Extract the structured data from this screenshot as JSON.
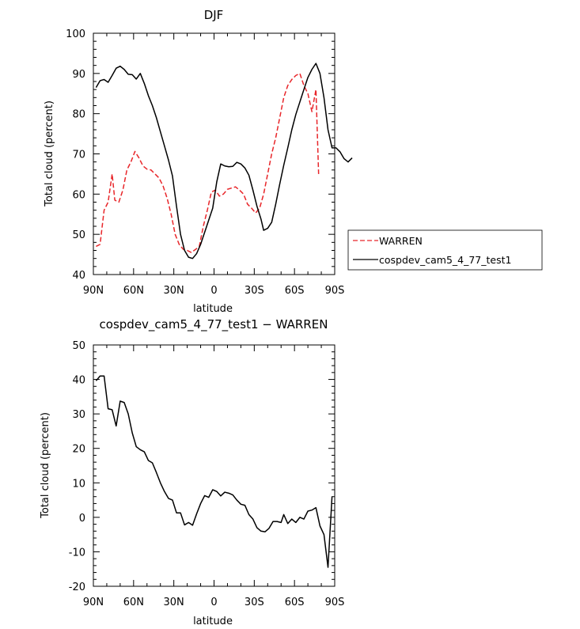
{
  "chart_data": [
    {
      "type": "line",
      "title": "DJF",
      "xlabel": "latitude",
      "ylabel": "Total cloud (percent)",
      "xlim": [
        90,
        -90
      ],
      "ylim": [
        40,
        100
      ],
      "x_ticks": [
        {
          "v": 90,
          "label": "90N"
        },
        {
          "v": 60,
          "label": "60N"
        },
        {
          "v": 30,
          "label": "30N"
        },
        {
          "v": 0,
          "label": "0"
        },
        {
          "v": -30,
          "label": "30S"
        },
        {
          "v": -60,
          "label": "60S"
        },
        {
          "v": -90,
          "label": "90S"
        }
      ],
      "y_ticks": [
        40,
        50,
        60,
        70,
        80,
        90,
        100
      ],
      "legend": "right",
      "series": [
        {
          "name": "WARREN",
          "color": "#e8262a",
          "dash": "dashed",
          "points": [
            [
              88,
              47
            ],
            [
              85,
              47.5
            ],
            [
              82,
              56
            ],
            [
              79,
              58
            ],
            [
              76,
              65
            ],
            [
              74,
              58.5
            ],
            [
              71,
              58
            ],
            [
              68,
              61
            ],
            [
              65,
              66
            ],
            [
              62,
              68
            ],
            [
              59,
              70.6
            ],
            [
              56,
              69
            ],
            [
              53,
              67
            ],
            [
              50,
              66.2
            ],
            [
              47,
              66
            ],
            [
              44,
              65
            ],
            [
              41,
              64
            ],
            [
              38,
              62
            ],
            [
              35,
              59
            ],
            [
              32,
              55
            ],
            [
              29,
              50
            ],
            [
              26,
              47.5
            ],
            [
              23,
              46.3
            ],
            [
              20,
              46
            ],
            [
              17,
              45.5
            ],
            [
              14,
              46.2
            ],
            [
              11,
              47
            ],
            [
              8,
              52
            ],
            [
              5,
              56
            ],
            [
              2,
              60.5
            ],
            [
              -1,
              61
            ],
            [
              -4,
              59.5
            ],
            [
              -7,
              60
            ],
            [
              -10,
              61.2
            ],
            [
              -13,
              61.5
            ],
            [
              -16,
              61.8
            ],
            [
              -19,
              61
            ],
            [
              -22,
              60
            ],
            [
              -25,
              57.5
            ],
            [
              -28,
              56.5
            ],
            [
              -31,
              55.3
            ],
            [
              -34,
              56.5
            ],
            [
              -37,
              60
            ],
            [
              -40,
              65
            ],
            [
              -43,
              70
            ],
            [
              -46,
              74
            ],
            [
              -49,
              79
            ],
            [
              -52,
              84
            ],
            [
              -55,
              87
            ],
            [
              -58,
              88.5
            ],
            [
              -61,
              89.5
            ],
            [
              -64,
              90
            ],
            [
              -67,
              87
            ],
            [
              -70,
              85
            ],
            [
              -73,
              80.5
            ],
            [
              -76,
              86
            ],
            [
              -78,
              65
            ]
          ]
        },
        {
          "name": "cospdev_cam5_4_77_test1",
          "color": "#000000",
          "dash": "solid",
          "points": [
            [
              88,
              86.5
            ],
            [
              85,
              88.2
            ],
            [
              82,
              88.5
            ],
            [
              79,
              87.8
            ],
            [
              76,
              89.5
            ],
            [
              73,
              91.3
            ],
            [
              70,
              91.8
            ],
            [
              67,
              91
            ],
            [
              64,
              89.8
            ],
            [
              61,
              89.7
            ],
            [
              58,
              88.6
            ],
            [
              55,
              90
            ],
            [
              52,
              87.5
            ],
            [
              49,
              84.5
            ],
            [
              46,
              82
            ],
            [
              43,
              79
            ],
            [
              40,
              75.5
            ],
            [
              37,
              72
            ],
            [
              34,
              68.5
            ],
            [
              31,
              64.5
            ],
            [
              28,
              57
            ],
            [
              25,
              50
            ],
            [
              22,
              46
            ],
            [
              19,
              44.3
            ],
            [
              16,
              44
            ],
            [
              13,
              45.2
            ],
            [
              10,
              47.5
            ],
            [
              7,
              50.5
            ],
            [
              4,
              53.5
            ],
            [
              1,
              56.5
            ],
            [
              -2,
              63
            ],
            [
              -5,
              67.5
            ],
            [
              -8,
              67
            ],
            [
              -11,
              66.8
            ],
            [
              -14,
              66.9
            ],
            [
              -17,
              67.9
            ],
            [
              -20,
              67.5
            ],
            [
              -23,
              66.5
            ],
            [
              -26,
              64.7
            ],
            [
              -29,
              61
            ],
            [
              -32,
              57
            ],
            [
              -35,
              53.8
            ],
            [
              -37,
              51
            ],
            [
              -40,
              51.5
            ],
            [
              -43,
              53
            ],
            [
              -46,
              57.5
            ],
            [
              -49,
              62.5
            ],
            [
              -52,
              67.2
            ],
            [
              -55,
              71.5
            ],
            [
              -58,
              76
            ],
            [
              -61,
              79.8
            ],
            [
              -64,
              82.9
            ],
            [
              -67,
              86
            ],
            [
              -70,
              89
            ],
            [
              -73,
              91
            ],
            [
              -76,
              92.5
            ],
            [
              -79,
              90
            ],
            [
              -82,
              84
            ],
            [
              -85,
              76
            ],
            [
              -88,
              71.5
            ],
            [
              -91,
              71.5
            ],
            [
              -94,
              70.5
            ],
            [
              -97,
              68.8
            ],
            [
              -100,
              68
            ],
            [
              -103,
              69
            ]
          ]
        }
      ]
    },
    {
      "type": "line",
      "title": "cospdev_cam5_4_77_test1 − WARREN",
      "xlabel": "latitude",
      "ylabel": "Total cloud (percent)",
      "xlim": [
        90,
        -90
      ],
      "ylim": [
        -20,
        50
      ],
      "x_ticks": [
        {
          "v": 90,
          "label": "90N"
        },
        {
          "v": 60,
          "label": "60N"
        },
        {
          "v": 30,
          "label": "30N"
        },
        {
          "v": 0,
          "label": "0"
        },
        {
          "v": -30,
          "label": "30S"
        },
        {
          "v": -60,
          "label": "60S"
        },
        {
          "v": -90,
          "label": "90S"
        }
      ],
      "y_ticks": [
        -20,
        -10,
        0,
        10,
        20,
        30,
        40,
        50
      ],
      "series": [
        {
          "color": "#000000",
          "dash": "solid",
          "points": [
            [
              88,
              39.6
            ],
            [
              85,
              41
            ],
            [
              82,
              41
            ],
            [
              79,
              31.5
            ],
            [
              76,
              31.2
            ],
            [
              73,
              26.5
            ],
            [
              70,
              33.7
            ],
            [
              67,
              33.3
            ],
            [
              64,
              30
            ],
            [
              61,
              24.5
            ],
            [
              58,
              20.5
            ],
            [
              55,
              19.6
            ],
            [
              52,
              19
            ],
            [
              49,
              16.5
            ],
            [
              46,
              15.8
            ],
            [
              43,
              13
            ],
            [
              40,
              10
            ],
            [
              37,
              7.5
            ],
            [
              34,
              5.5
            ],
            [
              31,
              5
            ],
            [
              28,
              1.3
            ],
            [
              25,
              1.3
            ],
            [
              22,
              -2.2
            ],
            [
              19,
              -1.5
            ],
            [
              16,
              -2.3
            ],
            [
              13,
              1
            ],
            [
              10,
              4
            ],
            [
              7,
              6.3
            ],
            [
              4,
              5.8
            ],
            [
              1,
              8
            ],
            [
              -2,
              7.5
            ],
            [
              -5,
              6.2
            ],
            [
              -8,
              7.3
            ],
            [
              -11,
              7
            ],
            [
              -14,
              6.5
            ],
            [
              -17,
              5
            ],
            [
              -20,
              3.8
            ],
            [
              -23,
              3.5
            ],
            [
              -26,
              0.8
            ],
            [
              -29,
              -0.5
            ],
            [
              -32,
              -3
            ],
            [
              -35,
              -4
            ],
            [
              -38,
              -4.2
            ],
            [
              -41,
              -3.2
            ],
            [
              -44,
              -1.2
            ],
            [
              -47,
              -1.2
            ],
            [
              -50,
              -1.5
            ],
            [
              -52,
              0.8
            ],
            [
              -55,
              -1.8
            ],
            [
              -58,
              -0.5
            ],
            [
              -61,
              -1.5
            ],
            [
              -64,
              0
            ],
            [
              -67,
              -0.5
            ],
            [
              -70,
              1.8
            ],
            [
              -73,
              2.1
            ],
            [
              -76,
              2.8
            ],
            [
              -79,
              -2.5
            ],
            [
              -82,
              -5
            ],
            [
              -85,
              -14.5
            ],
            [
              -88,
              6
            ]
          ]
        }
      ]
    }
  ]
}
